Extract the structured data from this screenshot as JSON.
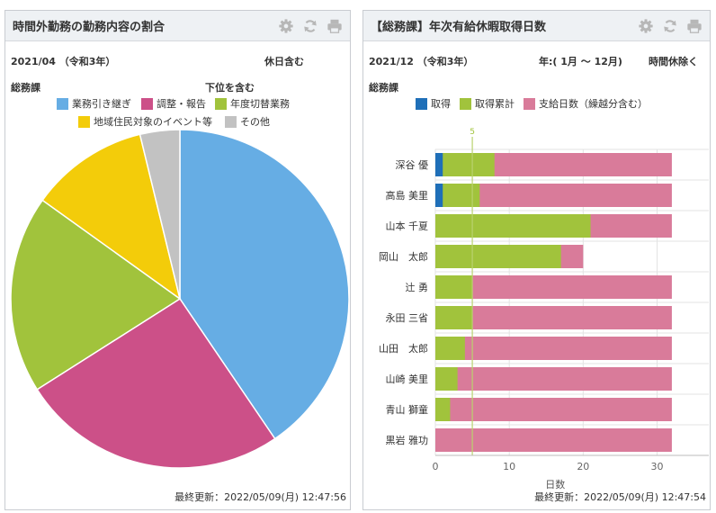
{
  "left": {
    "title": "時間外勤務の勤務内容の割合",
    "period": "2021/04 （令和3年）",
    "holiday_note": "休日含む",
    "department": "総務課",
    "subtitle": "下位を含む",
    "legend": [
      {
        "label": "業務引き継ぎ",
        "color": "#66ade4"
      },
      {
        "label": "調整・報告",
        "color": "#cc5088"
      },
      {
        "label": "年度切替業務",
        "color": "#a1c33c"
      },
      {
        "label": "地域住民対象のイベント等",
        "color": "#f3cc0a"
      },
      {
        "label": "その他",
        "color": "#c2c2c2"
      }
    ],
    "footer": "最終更新：2022/05/09(月) 12:47:56"
  },
  "right": {
    "title": "【総務課】年次有給休暇取得日数",
    "period": "2021/12 （令和3年）",
    "range": "年:( 1月 ～ 12月)",
    "hourly_note": "時間休除く",
    "department": "総務課",
    "legend": [
      {
        "label": "取得",
        "color": "#1f6fb8"
      },
      {
        "label": "取得累計",
        "color": "#a1c33c"
      },
      {
        "label": "支給日数（繰越分含む）",
        "color": "#d97b9a"
      }
    ],
    "footer": "最終更新：2022/05/09(月) 12:47:54"
  },
  "chart_data": [
    {
      "type": "pie",
      "categories": [
        "業務引き継ぎ",
        "調整・報告",
        "年度切替業務",
        "地域住民対象のイベント等",
        "その他"
      ],
      "values": [
        40.5,
        25.5,
        18.9,
        11.3,
        3.8
      ],
      "colors": [
        "#66ade4",
        "#cc5088",
        "#a1c33c",
        "#f3cc0a",
        "#c2c2c2"
      ]
    },
    {
      "type": "bar",
      "orientation": "horizontal",
      "categories": [
        "深谷 優",
        "高島 美里",
        "山本 千夏",
        "岡山　太郎",
        "辻 勇",
        "永田 三省",
        "山田　太郎",
        "山崎 美里",
        "青山 獅童",
        "黒岩 雅功"
      ],
      "series": [
        {
          "name": "取得",
          "values": [
            1,
            1,
            0,
            0,
            0,
            0,
            0,
            0,
            0,
            0
          ]
        },
        {
          "name": "取得累計",
          "values": [
            8,
            6,
            21,
            17,
            5,
            5,
            4,
            3,
            2,
            0
          ]
        },
        {
          "name": "支給日数（繰越分含む）",
          "values": [
            32,
            32,
            32,
            20,
            32,
            32,
            32,
            32,
            32,
            32
          ]
        }
      ],
      "colors": [
        "#1f6fb8",
        "#a1c33c",
        "#d97b9a"
      ],
      "xlabel": "日数",
      "xlim": [
        0,
        37
      ],
      "xticks": [
        0,
        10,
        20,
        30
      ],
      "reference_line": 5,
      "reference_label": "5",
      "grid": true
    }
  ]
}
